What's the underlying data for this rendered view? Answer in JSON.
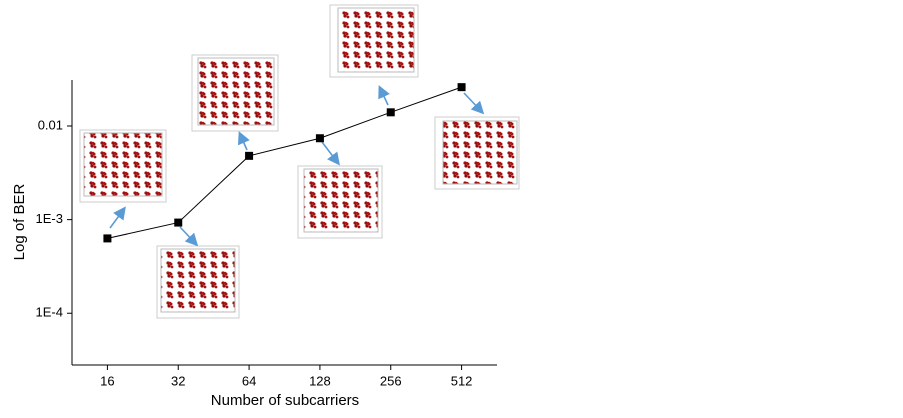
{
  "chart_data": {
    "type": "line",
    "xlabel": "Number of subcarriers",
    "ylabel": "Log of BER",
    "categories": [
      "16",
      "32",
      "64",
      "128",
      "256",
      "512"
    ],
    "series": [
      {
        "color": "#000000",
        "values": [
          0.00063,
          0.00093,
          0.0048,
          0.0074,
          0.014,
          0.026
        ]
      }
    ],
    "log_y": true,
    "ylim": [
      2.8e-05,
      0.031
    ],
    "yticks": [
      {
        "value": 0.0001,
        "label": "1E-4"
      },
      {
        "value": 0.001,
        "label": "1E-3"
      },
      0.01
    ]
  }
}
